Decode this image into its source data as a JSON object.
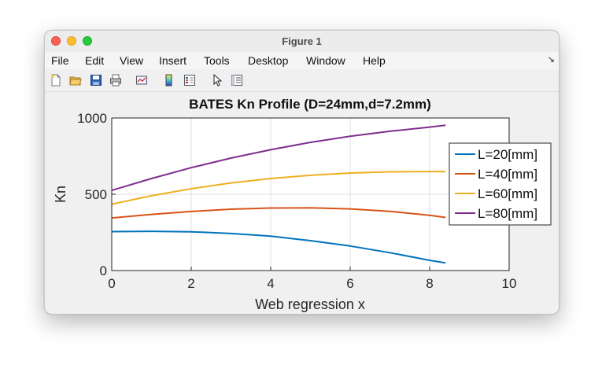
{
  "window": {
    "title": "Figure 1"
  },
  "menu": {
    "items": [
      "File",
      "Edit",
      "View",
      "Insert",
      "Tools",
      "Desktop",
      "Window",
      "Help"
    ],
    "overflow_glyph": "↘"
  },
  "toolbar": {
    "icons": [
      "new-figure-icon",
      "open-folder-icon",
      "save-icon",
      "print-icon",
      "link-plot-icon",
      "colorbar-icon",
      "legend-icon",
      "pointer-icon",
      "property-inspector-icon"
    ]
  },
  "chart_data": {
    "type": "line",
    "title": "BATES Kn Profile (D=24mm,d=7.2mm)",
    "xlabel": "Web regression x",
    "ylabel": "Kn",
    "xlim": [
      0,
      10
    ],
    "ylim": [
      0,
      1000
    ],
    "xticks": [
      "0",
      "2",
      "4",
      "6",
      "8",
      "10"
    ],
    "yticks": [
      "0",
      "500",
      "1000"
    ],
    "grid": true,
    "legend_position": "right",
    "series": [
      {
        "name": "L=20[mm]",
        "color": "#0072bd",
        "x": [
          0,
          1,
          2,
          3,
          4,
          5,
          6,
          7,
          8,
          8.4
        ],
        "y": [
          255,
          257,
          254,
          243,
          225,
          196,
          161,
          117,
          67,
          50
        ]
      },
      {
        "name": "L=40[mm]",
        "color": "#d95319",
        "x": [
          0,
          1,
          2,
          3,
          4,
          5,
          6,
          7,
          8,
          8.4
        ],
        "y": [
          345,
          368,
          387,
          402,
          410,
          411,
          404,
          388,
          362,
          348
        ]
      },
      {
        "name": "L=60[mm]",
        "color": "#edb120",
        "x": [
          0,
          1,
          2,
          3,
          4,
          5,
          6,
          7,
          8,
          8.4
        ],
        "y": [
          435,
          490,
          536,
          574,
          603,
          624,
          639,
          647,
          649,
          648
        ]
      },
      {
        "name": "L=80[mm]",
        "color": "#7e2f8e",
        "x": [
          0,
          1,
          2,
          3,
          4,
          5,
          6,
          7,
          8,
          8.4
        ],
        "y": [
          525,
          603,
          674,
          737,
          792,
          840,
          880,
          913,
          940,
          952
        ]
      }
    ]
  }
}
